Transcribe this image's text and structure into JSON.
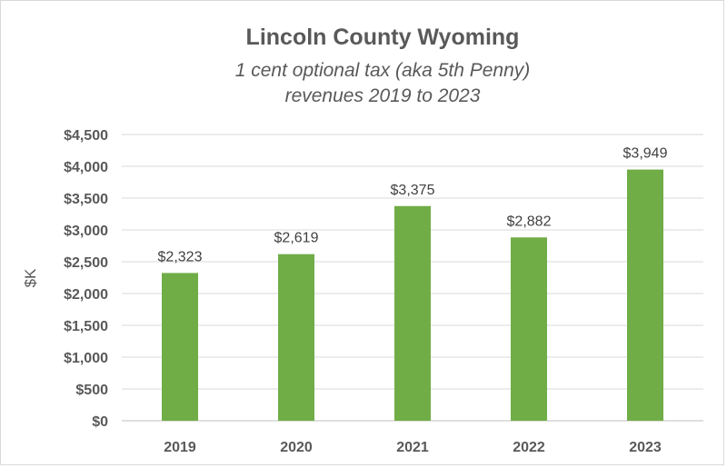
{
  "chart_data": {
    "type": "bar",
    "title": "Lincoln County Wyoming",
    "subtitle_line1": "1 cent optional tax (aka 5th Penny)",
    "subtitle_line2": "revenues 2019 to 2023",
    "ylabel": "$K",
    "xlabel": "",
    "categories": [
      "2019",
      "2020",
      "2021",
      "2022",
      "2023"
    ],
    "values": [
      2323,
      2619,
      3375,
      2882,
      3949
    ],
    "data_labels": [
      "$2,323",
      "$2,619",
      "$3,375",
      "$2,882",
      "$3,949"
    ],
    "ylim": [
      0,
      4500
    ],
    "yticks": [
      0,
      500,
      1000,
      1500,
      2000,
      2500,
      3000,
      3500,
      4000,
      4500
    ],
    "ytick_labels": [
      "$0",
      "$500",
      "$1,000",
      "$1,500",
      "$2,000",
      "$2,500",
      "$3,000",
      "$3,500",
      "$4,000",
      "$4,500"
    ],
    "grid": true,
    "legend": "none",
    "bar_color": "#70ad47"
  }
}
